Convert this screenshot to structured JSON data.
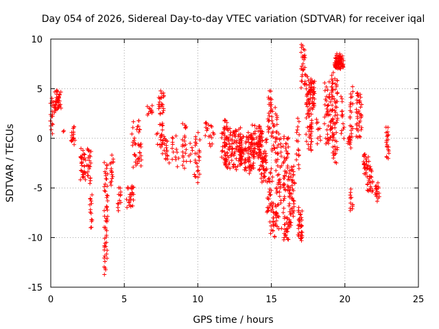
{
  "chart_data": {
    "type": "scatter",
    "title": "Day 054 of 2026, Sidereal Day-to-day VTEC variation (SDTVAR) for receiver iqal",
    "xlabel": "GPS time / hours",
    "ylabel": "SDTVAR / TECUs",
    "xlim": [
      0,
      25
    ],
    "ylim": [
      -15,
      10
    ],
    "xticks": [
      "0",
      "5",
      "10",
      "15",
      "20",
      "25"
    ],
    "yticks": [
      "10",
      "5",
      "0",
      "-5",
      "-10",
      "-15"
    ],
    "xtick_values": [
      0,
      5,
      10,
      15,
      20,
      25
    ],
    "ytick_values": [
      10,
      5,
      0,
      -5,
      -10,
      -15
    ],
    "grid": true,
    "marker": "+",
    "color": "#ff0000",
    "clusters": [
      [
        0.05,
        0.1,
        3.9,
        0.7,
        16
      ],
      [
        0.45,
        0.25,
        4.8,
        2.6,
        40
      ],
      [
        0.9,
        0.05,
        0.8,
        0.8,
        2
      ],
      [
        1.5,
        0.15,
        0.9,
        -0.5,
        18
      ],
      [
        2.2,
        0.2,
        -1.2,
        -4.2,
        32
      ],
      [
        2.6,
        0.15,
        -1.0,
        -4.5,
        22
      ],
      [
        2.75,
        0.1,
        -5.5,
        -9.0,
        14
      ],
      [
        3.75,
        0.12,
        -2.6,
        -5.0,
        14
      ],
      [
        3.75,
        0.12,
        -5.6,
        -13.4,
        40
      ],
      [
        4.15,
        0.12,
        -1.8,
        -4.7,
        16
      ],
      [
        4.65,
        0.12,
        -5.0,
        -7.2,
        12
      ],
      [
        5.4,
        0.25,
        -4.6,
        -6.8,
        28
      ],
      [
        5.6,
        0.1,
        1.4,
        -1.5,
        6
      ],
      [
        5.95,
        0.15,
        2.0,
        0.4,
        8
      ],
      [
        5.9,
        0.3,
        -0.2,
        -3.0,
        26
      ],
      [
        6.7,
        0.2,
        3.1,
        2.4,
        12
      ],
      [
        7.5,
        0.2,
        4.6,
        2.5,
        22
      ],
      [
        7.4,
        0.25,
        1.6,
        -1.2,
        22
      ],
      [
        7.9,
        0.2,
        0.2,
        -2.4,
        18
      ],
      [
        8.5,
        0.25,
        0.2,
        -2.6,
        14
      ],
      [
        9.1,
        0.15,
        1.6,
        -2.8,
        22
      ],
      [
        9.5,
        0.15,
        -0.6,
        -2.0,
        6
      ],
      [
        9.95,
        0.2,
        0.3,
        -4.4,
        26
      ],
      [
        10.8,
        0.3,
        1.8,
        -0.5,
        20
      ],
      [
        11.8,
        0.2,
        2.0,
        -2.5,
        28
      ],
      [
        12.4,
        0.6,
        1.0,
        -3.0,
        110
      ],
      [
        13.3,
        0.5,
        0.4,
        -3.2,
        100
      ],
      [
        14.0,
        0.4,
        1.2,
        -2.0,
        60
      ],
      [
        14.4,
        0.3,
        0.6,
        -3.6,
        40
      ],
      [
        14.9,
        0.15,
        4.6,
        0.5,
        26
      ],
      [
        14.5,
        0.2,
        -1.5,
        -4.5,
        20
      ],
      [
        15.2,
        0.2,
        2.8,
        -1.5,
        24
      ],
      [
        14.9,
        0.2,
        -3.2,
        -7.5,
        26
      ],
      [
        15.1,
        0.2,
        -6.5,
        -9.9,
        26
      ],
      [
        15.5,
        0.2,
        0.4,
        -5.0,
        30
      ],
      [
        15.6,
        0.3,
        -4.6,
        -9.2,
        30
      ],
      [
        16.0,
        0.2,
        0.2,
        -5.5,
        40
      ],
      [
        16.1,
        0.25,
        -8.0,
        -10.2,
        30
      ],
      [
        16.4,
        0.2,
        -3.0,
        -8.0,
        44
      ],
      [
        16.8,
        0.1,
        1.7,
        -3.0,
        16
      ],
      [
        16.95,
        0.15,
        -7.2,
        -10.2,
        34
      ],
      [
        17.15,
        0.15,
        9.4,
        5.2,
        30
      ],
      [
        17.55,
        0.2,
        6.2,
        -1.0,
        70
      ],
      [
        17.8,
        0.15,
        5.8,
        3.0,
        30
      ],
      [
        18.2,
        0.15,
        2.0,
        -0.5,
        10
      ],
      [
        18.9,
        0.3,
        5.5,
        -0.6,
        60
      ],
      [
        19.3,
        0.2,
        6.5,
        1.0,
        40
      ],
      [
        19.6,
        0.3,
        8.2,
        7.0,
        80
      ],
      [
        19.3,
        0.2,
        0.5,
        -2.2,
        20
      ],
      [
        19.8,
        0.15,
        4.0,
        0.0,
        14
      ],
      [
        20.35,
        0.15,
        0.6,
        -0.8,
        16
      ],
      [
        20.45,
        0.1,
        5.0,
        1.0,
        16
      ],
      [
        20.45,
        0.1,
        -5.4,
        -7.2,
        12
      ],
      [
        20.95,
        0.2,
        4.7,
        0.0,
        40
      ],
      [
        21.45,
        0.2,
        -1.6,
        -3.5,
        26
      ],
      [
        21.7,
        0.2,
        -3.0,
        -5.6,
        28
      ],
      [
        22.2,
        0.15,
        -4.6,
        -6.2,
        18
      ],
      [
        22.9,
        0.1,
        1.0,
        -2.0,
        20
      ]
    ]
  }
}
